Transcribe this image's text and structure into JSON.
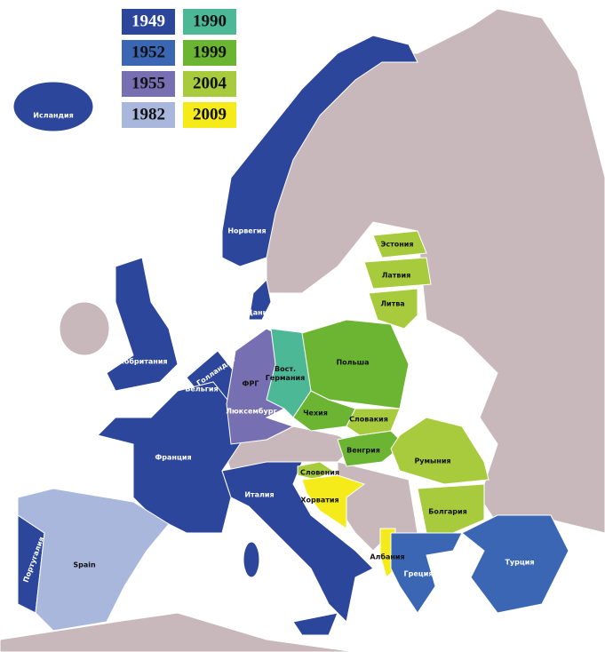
{
  "legend": [
    {
      "year": "1949",
      "color": "#2b469a"
    },
    {
      "year": "1952",
      "color": "#3b66b3"
    },
    {
      "year": "1955",
      "color": "#7670b2"
    },
    {
      "year": "1982",
      "color": "#a9b7dd"
    },
    {
      "year": "1990",
      "color": "#4db896"
    },
    {
      "year": "1999",
      "color": "#6cb533"
    },
    {
      "year": "2004",
      "color": "#a8cb3d"
    },
    {
      "year": "2009",
      "color": "#f5ea1a"
    }
  ],
  "countries": [
    "Исландия",
    "Норвегия",
    "Дания",
    "Великобритания",
    "Голландия",
    "Бельгия",
    "Люксембург",
    "Франция",
    "Италия",
    "Португалия",
    "ФРГ",
    "Вост. Германия",
    "Польша",
    "Чехия",
    "Венгрия",
    "Эстония",
    "Латвия",
    "Литва",
    "Словакия",
    "Словения",
    "Румыния",
    "Болгария",
    "Хорватия",
    "Албания",
    "Греция",
    "Турция",
    "Spain"
  ]
}
